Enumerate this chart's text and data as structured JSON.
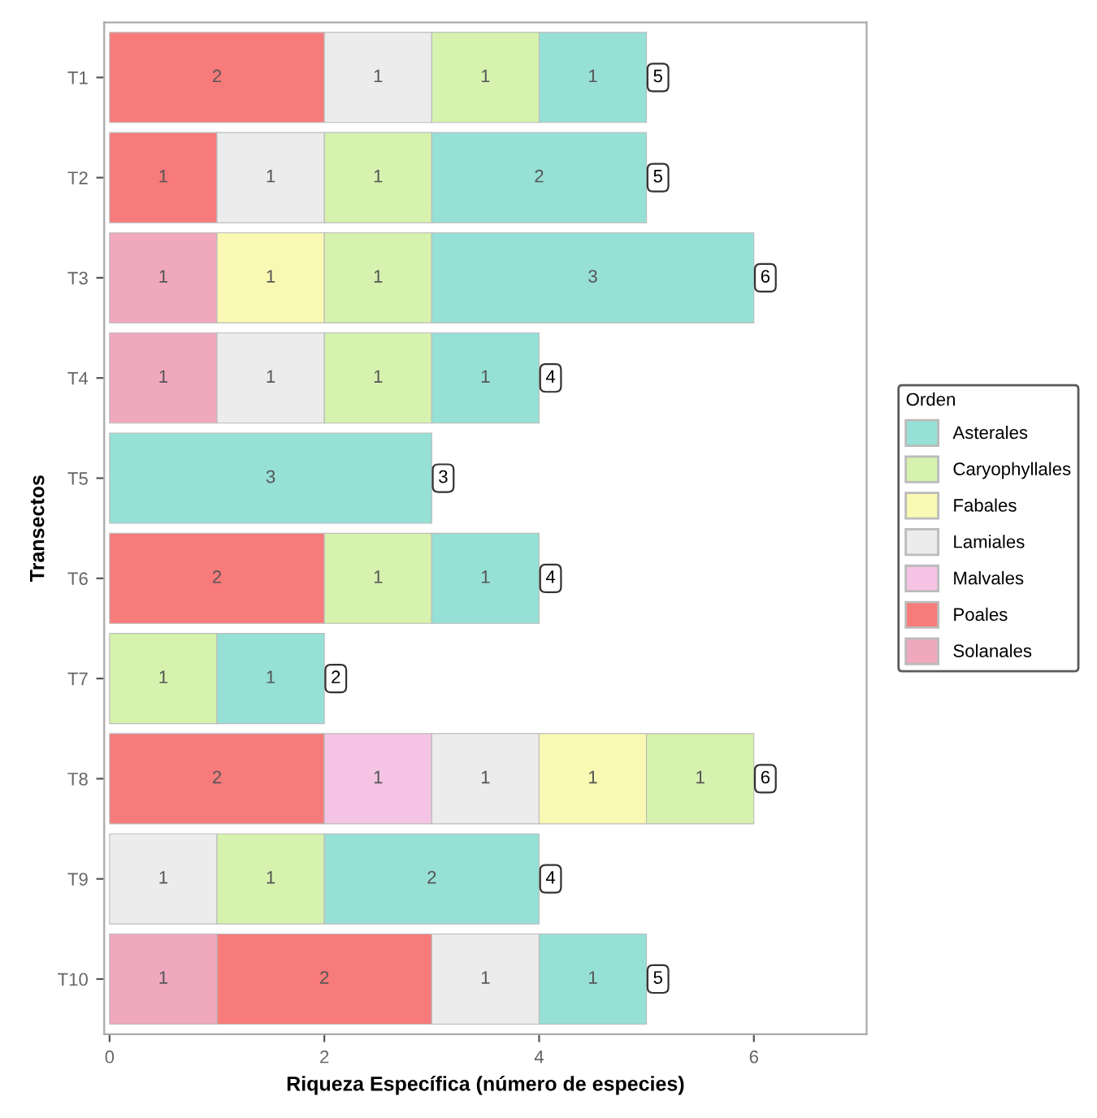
{
  "chart_data": {
    "type": "bar",
    "orientation": "horizontal",
    "stacked": true,
    "data_labels": true,
    "xlabel": "Riqueza Específica (número de especies)",
    "ylabel": "Transectos",
    "legend_title": "Orden",
    "legend": "right",
    "grid": false,
    "categories": [
      "T1",
      "T2",
      "T3",
      "T4",
      "T5",
      "T6",
      "T7",
      "T8",
      "T9",
      "T10"
    ],
    "xlim": [
      -0.05,
      7.05
    ],
    "xticks": [
      0,
      2,
      4,
      6
    ],
    "series": [
      {
        "name": "Solanales",
        "color": "#f0a8be",
        "values": [
          null,
          null,
          1,
          1,
          null,
          null,
          null,
          null,
          null,
          1
        ]
      },
      {
        "name": "Poales",
        "color": "#f77b7b",
        "values": [
          2,
          1,
          null,
          null,
          null,
          2,
          null,
          2,
          null,
          2
        ]
      },
      {
        "name": "Malvales",
        "color": "#f5c4e4",
        "values": [
          null,
          null,
          null,
          null,
          null,
          null,
          null,
          1,
          null,
          null
        ]
      },
      {
        "name": "Lamiales",
        "color": "#ececec",
        "values": [
          1,
          1,
          null,
          1,
          null,
          null,
          null,
          1,
          1,
          1
        ]
      },
      {
        "name": "Fabales",
        "color": "#f9f9b4",
        "values": [
          null,
          null,
          1,
          null,
          null,
          null,
          null,
          1,
          null,
          null
        ]
      },
      {
        "name": "Caryophyllales",
        "color": "#d6f2ae",
        "values": [
          1,
          1,
          1,
          1,
          null,
          1,
          1,
          1,
          1,
          null
        ]
      },
      {
        "name": "Asterales",
        "color": "#96e0d6",
        "values": [
          1,
          2,
          3,
          1,
          3,
          1,
          1,
          null,
          2,
          1
        ]
      }
    ],
    "totals": [
      "5",
      "5",
      "6",
      "4",
      "3",
      "4",
      "2",
      "6",
      "4",
      "5"
    ]
  }
}
